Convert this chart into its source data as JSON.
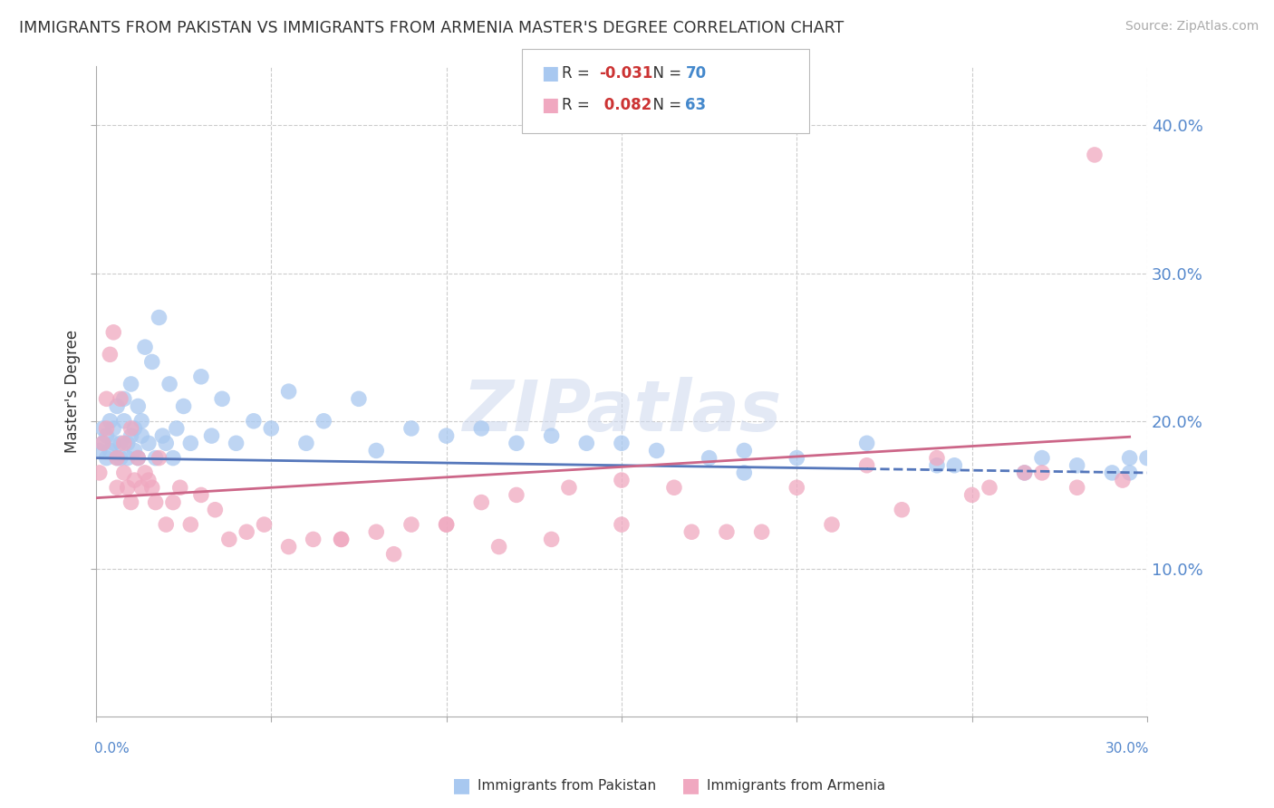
{
  "title": "IMMIGRANTS FROM PAKISTAN VS IMMIGRANTS FROM ARMENIA MASTER'S DEGREE CORRELATION CHART",
  "source": "Source: ZipAtlas.com",
  "ylabel": "Master's Degree",
  "yticks": [
    "10.0%",
    "20.0%",
    "30.0%",
    "40.0%"
  ],
  "ytick_vals": [
    0.1,
    0.2,
    0.3,
    0.4
  ],
  "xlim": [
    0.0,
    0.3
  ],
  "ylim": [
    0.0,
    0.44
  ],
  "color_pakistan": "#a8c8f0",
  "color_armenia": "#f0a8c0",
  "line_pakistan": "#5577bb",
  "line_armenia": "#cc6688",
  "pakistan_x": [
    0.001,
    0.002,
    0.002,
    0.003,
    0.003,
    0.004,
    0.004,
    0.005,
    0.005,
    0.006,
    0.006,
    0.007,
    0.007,
    0.008,
    0.008,
    0.009,
    0.009,
    0.01,
    0.01,
    0.011,
    0.011,
    0.012,
    0.012,
    0.013,
    0.013,
    0.014,
    0.015,
    0.016,
    0.017,
    0.018,
    0.019,
    0.02,
    0.021,
    0.022,
    0.023,
    0.025,
    0.027,
    0.03,
    0.033,
    0.036,
    0.04,
    0.045,
    0.05,
    0.055,
    0.06,
    0.065,
    0.075,
    0.08,
    0.09,
    0.1,
    0.11,
    0.12,
    0.13,
    0.14,
    0.15,
    0.16,
    0.175,
    0.185,
    0.2,
    0.22,
    0.245,
    0.27,
    0.28,
    0.29,
    0.295,
    0.3,
    0.295,
    0.265,
    0.24,
    0.185
  ],
  "pakistan_y": [
    0.18,
    0.185,
    0.195,
    0.175,
    0.19,
    0.2,
    0.18,
    0.185,
    0.195,
    0.175,
    0.21,
    0.185,
    0.175,
    0.2,
    0.215,
    0.185,
    0.175,
    0.19,
    0.225,
    0.18,
    0.195,
    0.21,
    0.175,
    0.19,
    0.2,
    0.25,
    0.185,
    0.24,
    0.175,
    0.27,
    0.19,
    0.185,
    0.225,
    0.175,
    0.195,
    0.21,
    0.185,
    0.23,
    0.19,
    0.215,
    0.185,
    0.2,
    0.195,
    0.22,
    0.185,
    0.2,
    0.215,
    0.18,
    0.195,
    0.19,
    0.195,
    0.185,
    0.19,
    0.185,
    0.185,
    0.18,
    0.175,
    0.18,
    0.175,
    0.185,
    0.17,
    0.175,
    0.17,
    0.165,
    0.175,
    0.175,
    0.165,
    0.165,
    0.17,
    0.165
  ],
  "armenia_x": [
    0.001,
    0.002,
    0.003,
    0.003,
    0.004,
    0.005,
    0.006,
    0.006,
    0.007,
    0.008,
    0.008,
    0.009,
    0.01,
    0.01,
    0.011,
    0.012,
    0.013,
    0.014,
    0.015,
    0.016,
    0.017,
    0.018,
    0.02,
    0.022,
    0.024,
    0.027,
    0.03,
    0.034,
    0.038,
    0.043,
    0.048,
    0.055,
    0.062,
    0.07,
    0.08,
    0.09,
    0.1,
    0.11,
    0.12,
    0.135,
    0.15,
    0.165,
    0.18,
    0.2,
    0.22,
    0.24,
    0.255,
    0.265,
    0.28,
    0.285,
    0.293,
    0.27,
    0.25,
    0.23,
    0.21,
    0.19,
    0.17,
    0.15,
    0.13,
    0.115,
    0.1,
    0.085,
    0.07
  ],
  "armenia_y": [
    0.165,
    0.185,
    0.195,
    0.215,
    0.245,
    0.26,
    0.155,
    0.175,
    0.215,
    0.165,
    0.185,
    0.155,
    0.145,
    0.195,
    0.16,
    0.175,
    0.155,
    0.165,
    0.16,
    0.155,
    0.145,
    0.175,
    0.13,
    0.145,
    0.155,
    0.13,
    0.15,
    0.14,
    0.12,
    0.125,
    0.13,
    0.115,
    0.12,
    0.12,
    0.125,
    0.13,
    0.13,
    0.145,
    0.15,
    0.155,
    0.16,
    0.155,
    0.125,
    0.155,
    0.17,
    0.175,
    0.155,
    0.165,
    0.155,
    0.38,
    0.16,
    0.165,
    0.15,
    0.14,
    0.13,
    0.125,
    0.125,
    0.13,
    0.12,
    0.115,
    0.13,
    0.11,
    0.12
  ],
  "trend_pak_x0": 0.0,
  "trend_pak_y0": 0.175,
  "trend_pak_x1": 0.3,
  "trend_pak_y1": 0.165,
  "trend_arm_x0": 0.0,
  "trend_arm_y0": 0.148,
  "trend_arm_x1": 0.3,
  "trend_arm_y1": 0.19,
  "trend_pak_solid_end": 0.22,
  "trend_arm_solid_end": 0.295
}
